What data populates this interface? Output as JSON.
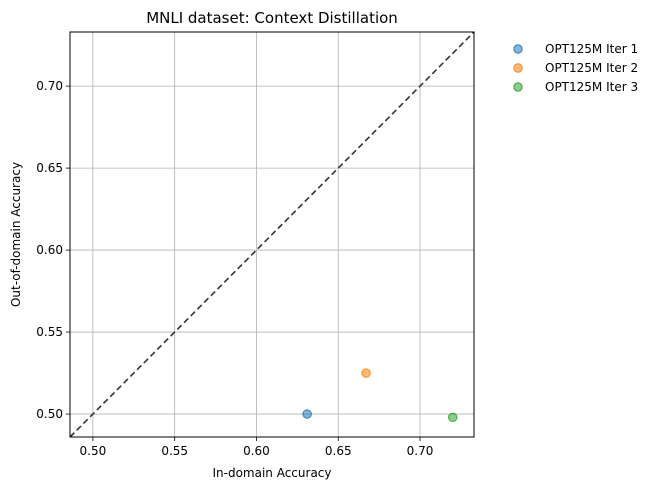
{
  "chart_data": {
    "type": "scatter",
    "title": "MNLI dataset: Context Distillation",
    "xlabel": "In-domain Accuracy",
    "ylabel": "Out-of-domain Accuracy",
    "xlim": [
      0.486,
      0.733
    ],
    "ylim": [
      0.486,
      0.733
    ],
    "xticks": [
      "0.50",
      "0.55",
      "0.60",
      "0.65",
      "0.70"
    ],
    "yticks": [
      "0.50",
      "0.55",
      "0.60",
      "0.65",
      "0.70"
    ],
    "grid": true,
    "legend_position": "outside-top-right",
    "reference_line": "y = x (dashed)",
    "series": [
      {
        "name": "OPT125M Iter 1",
        "color": "#1f77b4",
        "points": [
          {
            "x": 0.631,
            "y": 0.5
          }
        ]
      },
      {
        "name": "OPT125M Iter 2",
        "color": "#ff7f0e",
        "points": [
          {
            "x": 0.667,
            "y": 0.525
          }
        ]
      },
      {
        "name": "OPT125M Iter 3",
        "color": "#2ca02c",
        "points": [
          {
            "x": 0.72,
            "y": 0.498
          }
        ]
      }
    ]
  }
}
